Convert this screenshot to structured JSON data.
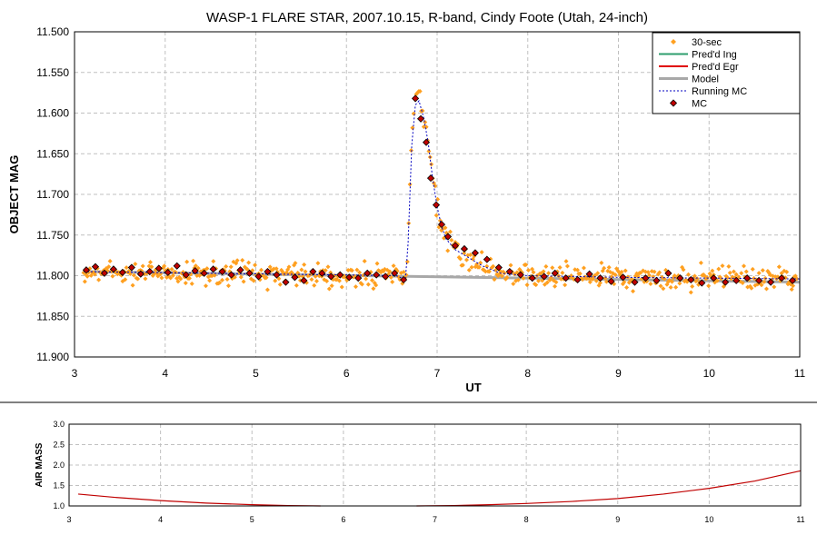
{
  "chart_data": [
    {
      "type": "scatter",
      "title": "WASP-1 FLARE STAR, 2007.10.15, R-band, Cindy Foote (Utah, 24-inch)",
      "xlabel": "UT",
      "ylabel": "OBJECT MAG",
      "xlim": [
        3,
        11
      ],
      "ylim": [
        11.9,
        11.5
      ],
      "y_inverted": true,
      "xticks": [
        "3",
        "4",
        "5",
        "6",
        "7",
        "8",
        "9",
        "10",
        "11"
      ],
      "yticks": [
        "11.500",
        "11.550",
        "11.600",
        "11.650",
        "11.700",
        "11.750",
        "11.800",
        "11.850",
        "11.900"
      ],
      "grid": true,
      "legend_position": "top-right",
      "colors": {
        "30-sec": "#ffa020",
        "ingress": "#2e9e6e",
        "egress": "#e00000",
        "model": "#a8a8a8",
        "running": "#0000c0",
        "mc": "#c00000"
      },
      "series": [
        {
          "name": "30-sec",
          "style": "diamond-points",
          "description_level": "raw 30-second observations scattered around baseline with flare near UT 6.8",
          "baseline": 11.796,
          "scatter": 0.012,
          "x_range": [
            3.1,
            10.97
          ],
          "cadence_hr": 0.0139
        },
        {
          "name": "Pred'd Ing",
          "style": "line",
          "x": [],
          "y": []
        },
        {
          "name": "Pred'd Egr",
          "style": "line",
          "x": [],
          "y": []
        },
        {
          "name": "Model",
          "style": "thick-line",
          "x": [
            3.1,
            11.0
          ],
          "y": [
            11.795,
            11.808
          ]
        },
        {
          "name": "Running MC",
          "style": "dashed-line",
          "x": [
            3.1,
            6.55,
            6.65,
            6.68,
            6.72,
            6.76,
            6.8,
            6.85,
            6.9,
            6.95,
            7.0,
            7.05,
            7.1,
            7.2,
            7.35,
            7.5,
            7.7,
            8.0,
            9.0,
            11.0
          ],
          "y": [
            11.795,
            11.8,
            11.805,
            11.76,
            11.64,
            11.59,
            11.585,
            11.605,
            11.635,
            11.68,
            11.715,
            11.74,
            11.755,
            11.768,
            11.778,
            11.788,
            11.797,
            11.8,
            11.802,
            11.804
          ]
        },
        {
          "name": "MC",
          "style": "diamond-points",
          "x": [
            3.13,
            3.23,
            3.33,
            3.43,
            3.53,
            3.63,
            3.73,
            3.83,
            3.93,
            4.03,
            4.13,
            4.23,
            4.33,
            4.43,
            4.53,
            4.63,
            4.73,
            4.83,
            4.93,
            5.03,
            5.13,
            5.23,
            5.33,
            5.43,
            5.53,
            5.63,
            5.73,
            5.83,
            5.93,
            6.03,
            6.13,
            6.23,
            6.33,
            6.43,
            6.53,
            6.63,
            6.76,
            6.82,
            6.88,
            6.93,
            6.99,
            7.05,
            7.12,
            7.2,
            7.3,
            7.42,
            7.55,
            7.68,
            7.8,
            7.92,
            8.05,
            8.18,
            8.3,
            8.42,
            8.55,
            8.68,
            8.8,
            8.92,
            9.05,
            9.18,
            9.3,
            9.42,
            9.55,
            9.68,
            9.8,
            9.92,
            10.05,
            10.18,
            10.3,
            10.42,
            10.55,
            10.68,
            10.8,
            10.92
          ],
          "y": [
            11.793,
            11.789,
            11.797,
            11.792,
            11.796,
            11.79,
            11.798,
            11.795,
            11.791,
            11.796,
            11.788,
            11.799,
            11.794,
            11.797,
            11.792,
            11.795,
            11.799,
            11.793,
            11.797,
            11.801,
            11.795,
            11.799,
            11.808,
            11.802,
            11.806,
            11.795,
            11.797,
            11.801,
            11.799,
            11.802,
            11.803,
            11.797,
            11.799,
            11.801,
            11.797,
            11.805,
            11.582,
            11.607,
            11.636,
            11.68,
            11.713,
            11.737,
            11.752,
            11.763,
            11.767,
            11.772,
            11.78,
            11.79,
            11.795,
            11.799,
            11.803,
            11.801,
            11.797,
            11.803,
            11.805,
            11.798,
            11.803,
            11.807,
            11.802,
            11.808,
            11.803,
            11.806,
            11.797,
            11.803,
            11.805,
            11.809,
            11.803,
            11.808,
            11.806,
            11.803,
            11.806,
            11.808,
            11.803,
            11.806
          ]
        }
      ]
    },
    {
      "type": "line",
      "xlabel": "",
      "ylabel": "AIR MASS",
      "xlim": [
        3,
        11
      ],
      "ylim": [
        1.0,
        3.0
      ],
      "xticks": [
        "3",
        "4",
        "5",
        "6",
        "7",
        "8",
        "9",
        "10",
        "11"
      ],
      "yticks": [
        "1.0",
        "1.5",
        "2.0",
        "2.5",
        "3.0"
      ],
      "grid": true,
      "colors": {
        "line": "#c00000"
      },
      "series": [
        {
          "segments": [
            {
              "x": [
                3.1,
                3.5,
                4.0,
                4.5,
                5.0,
                5.4,
                5.75
              ],
              "y": [
                1.29,
                1.21,
                1.13,
                1.07,
                1.03,
                1.01,
                1.0
              ]
            },
            {
              "x": [
                6.8,
                7.2,
                7.6,
                8.0,
                8.5,
                9.0,
                9.5,
                10.0,
                10.5,
                11.0
              ],
              "y": [
                1.0,
                1.01,
                1.03,
                1.06,
                1.11,
                1.18,
                1.29,
                1.43,
                1.61,
                1.86
              ]
            }
          ]
        }
      ]
    }
  ],
  "legend": {
    "items": [
      {
        "label": "30-sec",
        "kind": "diamond",
        "color": "#ffa020"
      },
      {
        "label": "Pred'd Ing",
        "kind": "line",
        "color": "#2e9e6e"
      },
      {
        "label": "Pred'd Egr",
        "kind": "line",
        "color": "#e00000"
      },
      {
        "label": "Model",
        "kind": "thick",
        "color": "#a8a8a8"
      },
      {
        "label": "Running MC",
        "kind": "dashed",
        "color": "#0000c0"
      },
      {
        "label": "MC",
        "kind": "diamond-outline",
        "color": "#c00000"
      }
    ]
  }
}
